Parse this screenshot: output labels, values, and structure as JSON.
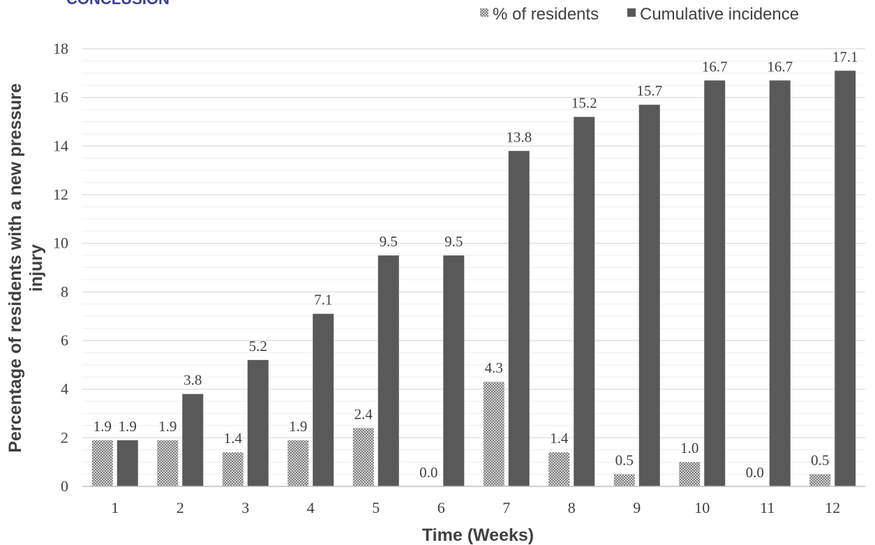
{
  "header": {
    "cut_text": "CONCLUSION"
  },
  "colors": {
    "residents": "#8a8a8a",
    "cumulative": "#595959",
    "grid": "#e6e6e6",
    "axis": "#bfbfbf",
    "text": "#404040"
  },
  "chart_data": {
    "type": "bar",
    "title": "",
    "xlabel": "Time (Weeks)",
    "ylabel": "Percentage of residents with a new pressure injury",
    "ylim": [
      0,
      18
    ],
    "yticks": [
      0,
      2,
      4,
      6,
      8,
      10,
      12,
      14,
      16,
      18
    ],
    "grid": true,
    "legend_position": "top-right",
    "categories": [
      "1",
      "2",
      "3",
      "4",
      "5",
      "6",
      "7",
      "8",
      "9",
      "10",
      "11",
      "12"
    ],
    "series": [
      {
        "name": "% of residents",
        "pattern": "dotted",
        "values": [
          1.9,
          1.9,
          1.4,
          1.9,
          2.4,
          0.0,
          4.3,
          1.4,
          0.5,
          1.0,
          0.0,
          0.5
        ],
        "labels": [
          "1.9",
          "1.9",
          "1.4",
          "1.9",
          "2.4",
          "0.0",
          "4.3",
          "1.4",
          "0.5",
          "1.0",
          "0.0",
          "0.5"
        ]
      },
      {
        "name": "Cumulative incidence",
        "pattern": "solid",
        "values": [
          1.9,
          3.8,
          5.2,
          7.1,
          9.5,
          9.5,
          13.8,
          15.2,
          15.7,
          16.7,
          16.7,
          17.1
        ],
        "labels": [
          "1.9",
          "3.8",
          "5.2",
          "7.1",
          "9.5",
          "9.5",
          "13.8",
          "15.2",
          "15.7",
          "16.7",
          "16.7",
          "17.1"
        ]
      }
    ]
  }
}
